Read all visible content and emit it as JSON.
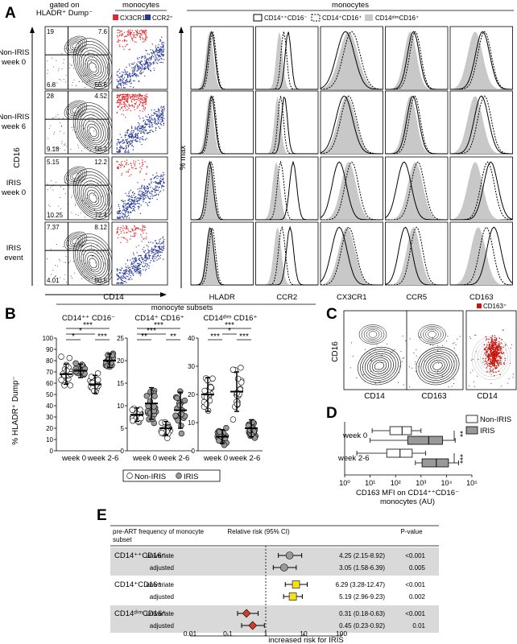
{
  "panels": {
    "A": "A",
    "B": "B",
    "C": "C",
    "D": "D",
    "E": "E"
  },
  "panel_a": {
    "gate_label_1": "gated on",
    "gate_label_2": "HLADR⁺ Dump⁻",
    "mono_title": "monocytes",
    "cx3cr1_label": "CX3CR1⁺",
    "ccr2_label": "CCR2⁺",
    "hist_title": "monocytes",
    "legend": [
      "CD14⁺⁺CD16⁻",
      "CD14⁺CD16⁺",
      "CD14ᵈⁱᵐCD16⁺"
    ],
    "x_axis": "CD14",
    "y_axis": "CD16",
    "pct_max": "% max",
    "row_labels": [
      [
        "Non-IRIS",
        "week 0"
      ],
      [
        "Non-IRIS",
        "week 6"
      ],
      [
        "IRIS",
        "week 0"
      ],
      [
        "IRIS",
        "event"
      ]
    ],
    "quadrants": [
      [
        "19",
        "7.6",
        "6.8",
        "66.6"
      ],
      [
        "28",
        "4.52",
        "9.18",
        "58.3"
      ],
      [
        "5.15",
        "12.2",
        "10.25",
        "72.4"
      ],
      [
        "7.37",
        "8.12",
        "4.01",
        "80.5"
      ]
    ],
    "markers": [
      "HLADR",
      "CCR2",
      "CX3CR1",
      "CCR5",
      "CD163"
    ]
  },
  "panel_b": {
    "title": "monocyte subsets",
    "ylabel": "% HLADR⁺ Dump⁻",
    "xlabels": [
      "week 0",
      "week 2-6"
    ],
    "legend": [
      "Non-IRIS",
      "IRIS"
    ]
  },
  "panel_c": {
    "x_labels": [
      "CD14",
      "CD163",
      "CD14"
    ],
    "y_label": "CD16",
    "legend": "CD163⁺"
  },
  "panel_d": {
    "rows": [
      "week 0",
      "week 2-6"
    ],
    "legend": [
      "Non-IRIS",
      "IRIS"
    ],
    "sig": [
      "**",
      "***"
    ],
    "xticks": [
      "10⁰",
      "10¹",
      "10²",
      "10³",
      "10⁴",
      "10⁵"
    ],
    "xlabel_1": "CD163 MFI on CD14⁺⁺CD16⁻",
    "xlabel_2": "monocytes (AU)"
  },
  "panel_e": {
    "hdr_subset_1": "pre-ART frequency of monocyte",
    "hdr_subset_2": "subset",
    "hdr_rr": "Relative risk (95% CI)",
    "hdr_p": "P-value",
    "xticks": [
      "0.01",
      "0.1",
      "1",
      "10",
      "100"
    ],
    "arrow_label": "increased risk for IRIS",
    "groups": [
      "CD14⁺⁺CD16⁻",
      "CD14⁺CD16⁺",
      "CD14ᵈⁱᵐCD16⁺"
    ]
  },
  "colors": {
    "iris": "#999999",
    "cx3cr1": "#e8262a",
    "ccr2": "#2b3a9a",
    "cd163": "#c8170f",
    "band": "#d9d9d9",
    "dim_fill": "#c8c8c8",
    "e_circle": "#9a9a9a",
    "e_square": "#f2e21c",
    "e_diamond": "#d63a2b"
  },
  "chart_data": [
    {
      "type": "scatter",
      "title": "CD14⁺⁺ CD16⁻",
      "categories": [
        "week 0",
        "week 2-6"
      ],
      "ylim": [
        0,
        100
      ],
      "yticks": [
        0,
        10,
        20,
        30,
        40,
        50,
        60,
        70,
        80,
        90,
        100
      ],
      "series": [
        {
          "name": "Non-IRIS",
          "mean_week0": 68,
          "sd_week0": 9,
          "mean_week26": 59,
          "sd_week26": 8
        },
        {
          "name": "IRIS",
          "mean_week0": 71,
          "sd_week0": 6,
          "mean_week26": 80,
          "sd_week26": 6
        }
      ],
      "significance": [
        {
          "between": [
            "Non-IRIS week 0",
            "IRIS week 2-6"
          ],
          "label": "***"
        },
        {
          "between": [
            "Non-IRIS week 0",
            "Non-IRIS week 2-6"
          ],
          "label": "*"
        },
        {
          "between": [
            "Non-IRIS week 0",
            "IRIS week 0"
          ],
          "label": "*"
        },
        {
          "between": [
            "Non-IRIS week 2-6",
            "IRIS week 2-6"
          ],
          "label": "***"
        }
      ]
    },
    {
      "type": "scatter",
      "title": "CD14⁺ CD16⁺",
      "categories": [
        "week 0",
        "week 2-6"
      ],
      "ylim": [
        0,
        25
      ],
      "yticks": [
        0,
        5,
        10,
        15,
        20,
        25
      ],
      "series": [
        {
          "name": "Non-IRIS",
          "mean_week0": 8,
          "sd_week0": 1.5,
          "mean_week26": 5,
          "sd_week26": 1.5
        },
        {
          "name": "IRIS",
          "mean_week0": 10.5,
          "sd_week0": 3.5,
          "mean_week26": 9,
          "sd_week26": 4
        }
      ],
      "significance": [
        {
          "between": [
            "Non-IRIS week 0",
            "IRIS week 2-6"
          ],
          "label": "***"
        },
        {
          "between": [
            "Non-IRIS week 0",
            "Non-IRIS week 2-6"
          ],
          "label": "***"
        },
        {
          "between": [
            "Non-IRIS week 0",
            "IRIS week 0"
          ],
          "label": "**"
        },
        {
          "between": [
            "Non-IRIS week 2-6",
            "IRIS week 2-6"
          ],
          "label": "**"
        }
      ]
    },
    {
      "type": "scatter",
      "title": "CD14ᵈⁱᵐ CD16⁺",
      "categories": [
        "week 0",
        "week 2-6"
      ],
      "ylim": [
        0,
        40
      ],
      "yticks": [
        0,
        10,
        20,
        30,
        40
      ],
      "series": [
        {
          "name": "Non-IRIS",
          "mean_week0": 20,
          "sd_week0": 6,
          "mean_week26": 21,
          "sd_week26": 7
        },
        {
          "name": "IRIS",
          "mean_week0": 5,
          "sd_week0": 2.5,
          "mean_week26": 8,
          "sd_week26": 3
        }
      ],
      "significance": [
        {
          "between": [
            "Non-IRIS week 0",
            "IRIS week 2-6"
          ],
          "label": "***"
        },
        {
          "between": [
            "Non-IRIS week 0",
            "IRIS week 0"
          ],
          "label": "***"
        },
        {
          "between": [
            "IRIS week 0",
            "Non-IRIS week 2-6"
          ],
          "label": "*"
        },
        {
          "between": [
            "Non-IRIS week 2-6",
            "IRIS week 2-6"
          ],
          "label": "***"
        }
      ]
    },
    {
      "type": "box",
      "title": "CD163 MFI on CD14⁺⁺CD16⁻ monocytes (AU)",
      "x_scale": "log",
      "xlim": [
        1,
        100000
      ],
      "rows": [
        {
          "label": "week 0",
          "Non-IRIS": {
            "min": 12,
            "q1": 60,
            "median": 180,
            "q3": 420,
            "max": 1000
          },
          "IRIS": {
            "min": 10,
            "q1": 300,
            "median": 2000,
            "q3": 7000,
            "max": 22000
          }
        },
        {
          "label": "week 2-6",
          "Non-IRIS": {
            "min": 3,
            "q1": 45,
            "median": 150,
            "q3": 450,
            "max": 1500
          },
          "IRIS": {
            "min": 600,
            "q1": 1100,
            "median": 4000,
            "q3": 12000,
            "max": 30000
          }
        }
      ]
    },
    {
      "type": "forest",
      "x_scale": "log",
      "xlim": [
        0.01,
        100
      ],
      "xticks": [
        0.01,
        0.1,
        1,
        10,
        100
      ],
      "rows": [
        {
          "group": "CD14⁺⁺CD16⁻",
          "model": "univariate",
          "rr": 4.25,
          "ci": [
            2.15,
            8.92
          ],
          "label": "4.25 (2.15-8.92)",
          "p": "<0.001"
        },
        {
          "group": "CD14⁺⁺CD16⁻",
          "model": "adjusted",
          "rr": 3.05,
          "ci": [
            1.58,
            6.39
          ],
          "label": "3.05 (1.58-6.39)",
          "p": "0.005"
        },
        {
          "group": "CD14⁺CD16⁺",
          "model": "univariate",
          "rr": 6.29,
          "ci": [
            3.28,
            12.47
          ],
          "label": "6.29 (3.28-12.47)",
          "p": "<0.001"
        },
        {
          "group": "CD14⁺CD16⁺",
          "model": "adjusted",
          "rr": 5.19,
          "ci": [
            2.96,
            9.23
          ],
          "label": "5.19 (2.96-9.23)",
          "p": "0.002"
        },
        {
          "group": "CD14ᵈⁱᵐCD16⁺",
          "model": "univariate",
          "rr": 0.31,
          "ci": [
            0.18,
            0.63
          ],
          "label": "0.31 (0.18-0.63)",
          "p": "<0.001"
        },
        {
          "group": "CD14ᵈⁱᵐCD16⁺",
          "model": "adjusted",
          "rr": 0.45,
          "ci": [
            0.23,
            0.92
          ],
          "label": "0.45 (0.23-0.92)",
          "p": "0.01"
        }
      ]
    }
  ]
}
